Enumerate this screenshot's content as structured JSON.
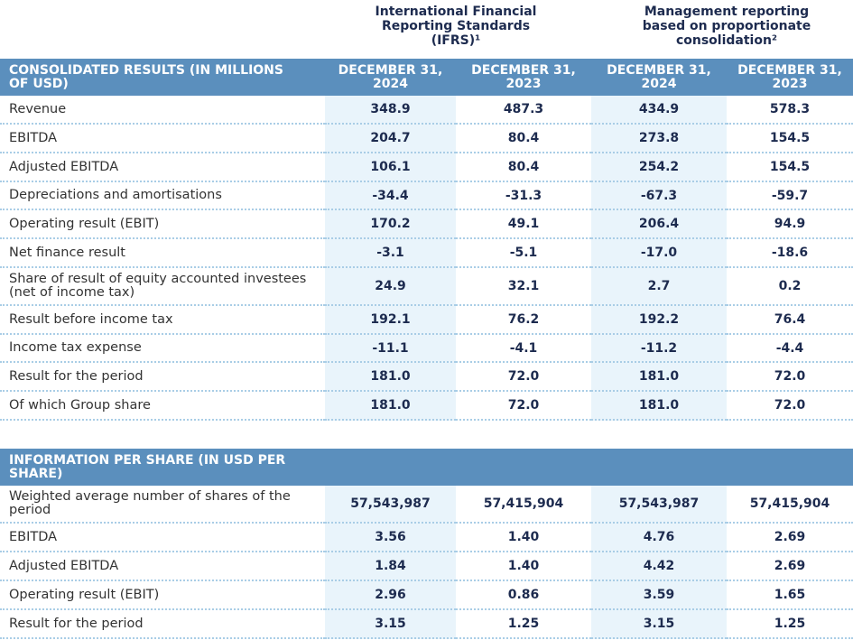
{
  "column_groups": [
    "International Financial Reporting Standards (IFRS)¹",
    "Management reporting based on proportionate consolidation²"
  ],
  "sections": [
    {
      "header": [
        "CONSOLIDATED RESULTS (IN MILLIONS OF USD)",
        "DECEMBER 31, 2024",
        "DECEMBER 31, 2023",
        "DECEMBER 31, 2024",
        "DECEMBER 31, 2023"
      ],
      "rows": [
        [
          "Revenue",
          "348.9",
          "487.3",
          "434.9",
          "578.3"
        ],
        [
          "EBITDA",
          "204.7",
          "80.4",
          "273.8",
          "154.5"
        ],
        [
          "Adjusted EBITDA",
          "106.1",
          "80.4",
          "254.2",
          "154.5"
        ],
        [
          "Depreciations and amortisations",
          "-34.4",
          "-31.3",
          "-67.3",
          "-59.7"
        ],
        [
          "Operating result (EBIT)",
          "170.2",
          "49.1",
          "206.4",
          "94.9"
        ],
        [
          "Net finance result",
          "-3.1",
          "-5.1",
          "-17.0",
          "-18.6"
        ],
        [
          "Share of result of equity accounted investees (net of income tax)",
          "24.9",
          "32.1",
          "2.7",
          "0.2"
        ],
        [
          "Result before income tax",
          "192.1",
          "76.2",
          "192.2",
          "76.4"
        ],
        [
          "Income tax expense",
          "-11.1",
          "-4.1",
          "-11.2",
          "-4.4"
        ],
        [
          "Result for the period",
          "181.0",
          "72.0",
          "181.0",
          "72.0"
        ],
        [
          "Of which Group share",
          "181.0",
          "72.0",
          "181.0",
          "72.0"
        ]
      ]
    },
    {
      "header": [
        "INFORMATION PER SHARE (IN USD PER SHARE)"
      ],
      "rows": [
        [
          "Weighted average number of shares of the period",
          "57,543,987",
          "57,415,904",
          "57,543,987",
          "57,415,904"
        ],
        [
          "EBITDA",
          "3.56",
          "1.40",
          "4.76",
          "2.69"
        ],
        [
          "Adjusted EBITDA",
          "1.84",
          "1.40",
          "4.42",
          "2.69"
        ],
        [
          "Operating result (EBIT)",
          "2.96",
          "0.86",
          "3.59",
          "1.65"
        ],
        [
          "Result for the period",
          "3.15",
          "1.25",
          "3.15",
          "1.25"
        ]
      ]
    }
  ]
}
